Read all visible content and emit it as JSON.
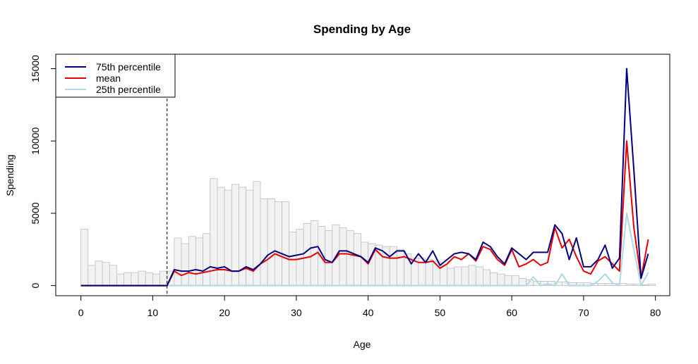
{
  "chart_data": {
    "type": "line",
    "title": "Spending by Age",
    "xlabel": "Age",
    "ylabel": "Spending",
    "xlim": [
      -3.5,
      82
    ],
    "ylim": [
      -700,
      16000
    ],
    "x_ticks": [
      "0",
      "10",
      "20",
      "30",
      "40",
      "50",
      "60",
      "70",
      "80"
    ],
    "y_ticks": [
      "0",
      "5000",
      "10000",
      "15000"
    ],
    "grid": false,
    "legend_position": "top-left",
    "reference_line_x": 12,
    "histogram": {
      "values": [
        3900,
        1400,
        1700,
        1600,
        1400,
        800,
        900,
        900,
        1000,
        900,
        800,
        1000,
        1000,
        3300,
        2900,
        3400,
        3300,
        3600,
        7400,
        6800,
        6600,
        7000,
        6800,
        6600,
        7200,
        6000,
        6000,
        5800,
        5800,
        3700,
        3900,
        4300,
        4500,
        4100,
        3800,
        4200,
        4000,
        3800,
        3600,
        3000,
        2900,
        2800,
        2700,
        2700,
        2500,
        2200,
        1900,
        1900,
        1800,
        1700,
        1400,
        1200,
        1300,
        1300,
        1400,
        1300,
        1100,
        900,
        800,
        700,
        700,
        500,
        400,
        300,
        300,
        300,
        250,
        250,
        200,
        200,
        200,
        150,
        150,
        150,
        150,
        150,
        100,
        100,
        50,
        100
      ],
      "color": "#f2f2f2",
      "border": "#bfbfbf"
    },
    "x": [
      0,
      1,
      2,
      3,
      4,
      5,
      6,
      7,
      8,
      9,
      10,
      11,
      12,
      13,
      14,
      15,
      16,
      17,
      18,
      19,
      20,
      21,
      22,
      23,
      24,
      25,
      26,
      27,
      28,
      29,
      30,
      31,
      32,
      33,
      34,
      35,
      36,
      37,
      38,
      39,
      40,
      41,
      42,
      43,
      44,
      45,
      46,
      47,
      48,
      49,
      50,
      51,
      52,
      53,
      54,
      55,
      56,
      57,
      58,
      59,
      60,
      61,
      62,
      63,
      64,
      65,
      66,
      67,
      68,
      69,
      70,
      71,
      72,
      73,
      74,
      75,
      76,
      77,
      78,
      79
    ],
    "series": [
      {
        "name": "75th percentile",
        "color": "#000080",
        "values": [
          0,
          0,
          0,
          0,
          0,
          0,
          0,
          0,
          0,
          0,
          0,
          0,
          0,
          1100,
          1000,
          1000,
          1100,
          1000,
          1300,
          1200,
          1300,
          1000,
          1000,
          1300,
          1100,
          1500,
          2100,
          2400,
          2200,
          2000,
          2100,
          2200,
          2600,
          2700,
          1800,
          1600,
          2400,
          2400,
          2200,
          2000,
          1600,
          2600,
          2400,
          2000,
          2400,
          2400,
          1500,
          2200,
          1600,
          2400,
          1400,
          1800,
          2200,
          2300,
          2200,
          1800,
          3000,
          2700,
          2000,
          1500,
          2600,
          2200,
          1800,
          2300,
          2300,
          2300,
          4200,
          3600,
          1800,
          3300,
          1300,
          1300,
          1800,
          2800,
          1200,
          1900,
          15000,
          8000,
          500,
          2200
        ]
      },
      {
        "name": "mean",
        "color": "#e60000",
        "values": [
          0,
          0,
          0,
          0,
          0,
          0,
          0,
          0,
          0,
          0,
          0,
          0,
          0,
          1000,
          700,
          900,
          800,
          900,
          1000,
          1100,
          1100,
          1000,
          1000,
          1200,
          1000,
          1500,
          1800,
          2200,
          2000,
          1800,
          1800,
          1900,
          2000,
          2300,
          1600,
          1600,
          2200,
          2200,
          2100,
          2000,
          1500,
          2500,
          2000,
          1900,
          1900,
          2000,
          1800,
          1600,
          1600,
          1700,
          1200,
          1500,
          2000,
          1800,
          2200,
          1700,
          2700,
          2500,
          1800,
          1400,
          2500,
          1300,
          1500,
          1800,
          1400,
          1600,
          4000,
          2600,
          3200,
          2000,
          1000,
          800,
          1700,
          2000,
          1500,
          1000,
          10000,
          4000,
          500,
          3200
        ]
      },
      {
        "name": "25th percentile",
        "color": "#add8e6",
        "values": [
          0,
          0,
          0,
          0,
          0,
          0,
          0,
          0,
          0,
          0,
          0,
          0,
          0,
          0,
          0,
          0,
          0,
          0,
          0,
          0,
          0,
          0,
          0,
          0,
          0,
          0,
          0,
          0,
          0,
          0,
          0,
          0,
          0,
          0,
          0,
          0,
          0,
          0,
          0,
          0,
          0,
          0,
          0,
          0,
          0,
          0,
          0,
          0,
          0,
          0,
          0,
          0,
          0,
          0,
          0,
          0,
          0,
          0,
          0,
          0,
          0,
          0,
          0,
          600,
          0,
          100,
          0,
          800,
          0,
          0,
          0,
          0,
          300,
          800,
          200,
          0,
          5000,
          2500,
          0,
          900
        ]
      }
    ]
  }
}
